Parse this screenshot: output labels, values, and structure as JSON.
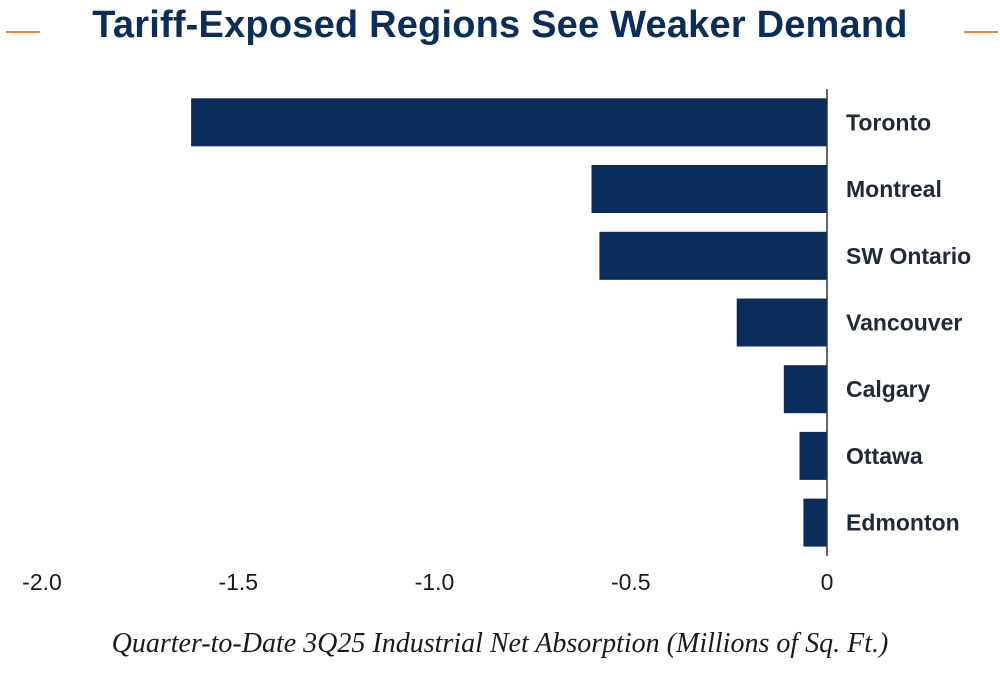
{
  "chart_data": {
    "type": "bar",
    "orientation": "horizontal",
    "title": "Tariff-Exposed Regions See Weaker Demand",
    "xlabel": "Quarter-to-Date 3Q25 Industrial Net Absorption (Millions of Sq. Ft.)",
    "ylabel": "",
    "categories": [
      "Toronto",
      "Montreal",
      "SW Ontario",
      "Vancouver",
      "Calgary",
      "Ottawa",
      "Edmonton"
    ],
    "values": [
      -1.62,
      -0.6,
      -0.58,
      -0.23,
      -0.11,
      -0.07,
      -0.06
    ],
    "xlim": [
      -2.0,
      0
    ],
    "x_ticks": [
      -2.0,
      -1.5,
      -1.0,
      -0.5,
      0
    ],
    "x_tick_labels": [
      "-2.0",
      "-1.5",
      "-1.0",
      "-0.5",
      "0"
    ],
    "grid": false,
    "legend": "none",
    "colors": {
      "bar": "#0b2d5b",
      "title": "#0b2d5b",
      "accent": "#e8883a",
      "axis": "#333333"
    }
  }
}
